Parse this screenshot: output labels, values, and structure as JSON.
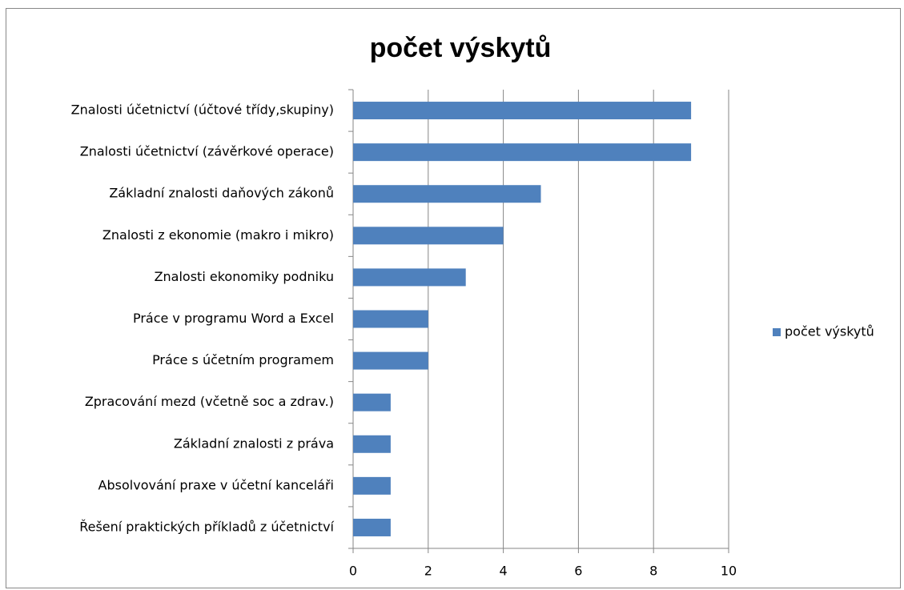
{
  "chart_data": {
    "type": "hbar",
    "title": "počet výskytů",
    "categories": [
      "Znalosti účetnictví (účtové třídy,skupiny)",
      "Znalosti účetnictví (závěrkové operace)",
      "Základní znalosti daňových zákonů",
      "Znalosti z ekonomie (makro i mikro)",
      "Znalosti ekonomiky podniku",
      "Práce v programu Word a Excel",
      "Práce s účetním programem",
      "Zpracování mezd (včetně soc a zdrav.)",
      "Základní znalosti z práva",
      "Absolvování praxe v účetní kanceláři",
      "Řešení praktických příkladů z účetnictví"
    ],
    "series": [
      {
        "name": "počet výskytů",
        "color": "#4f81bd",
        "values": [
          9,
          9,
          5,
          4,
          3,
          2,
          2,
          1,
          1,
          1,
          1
        ]
      }
    ],
    "xlim": [
      0,
      10
    ],
    "xticks": [
      0,
      2,
      4,
      6,
      8,
      10
    ],
    "grid": true,
    "legend": "right"
  }
}
